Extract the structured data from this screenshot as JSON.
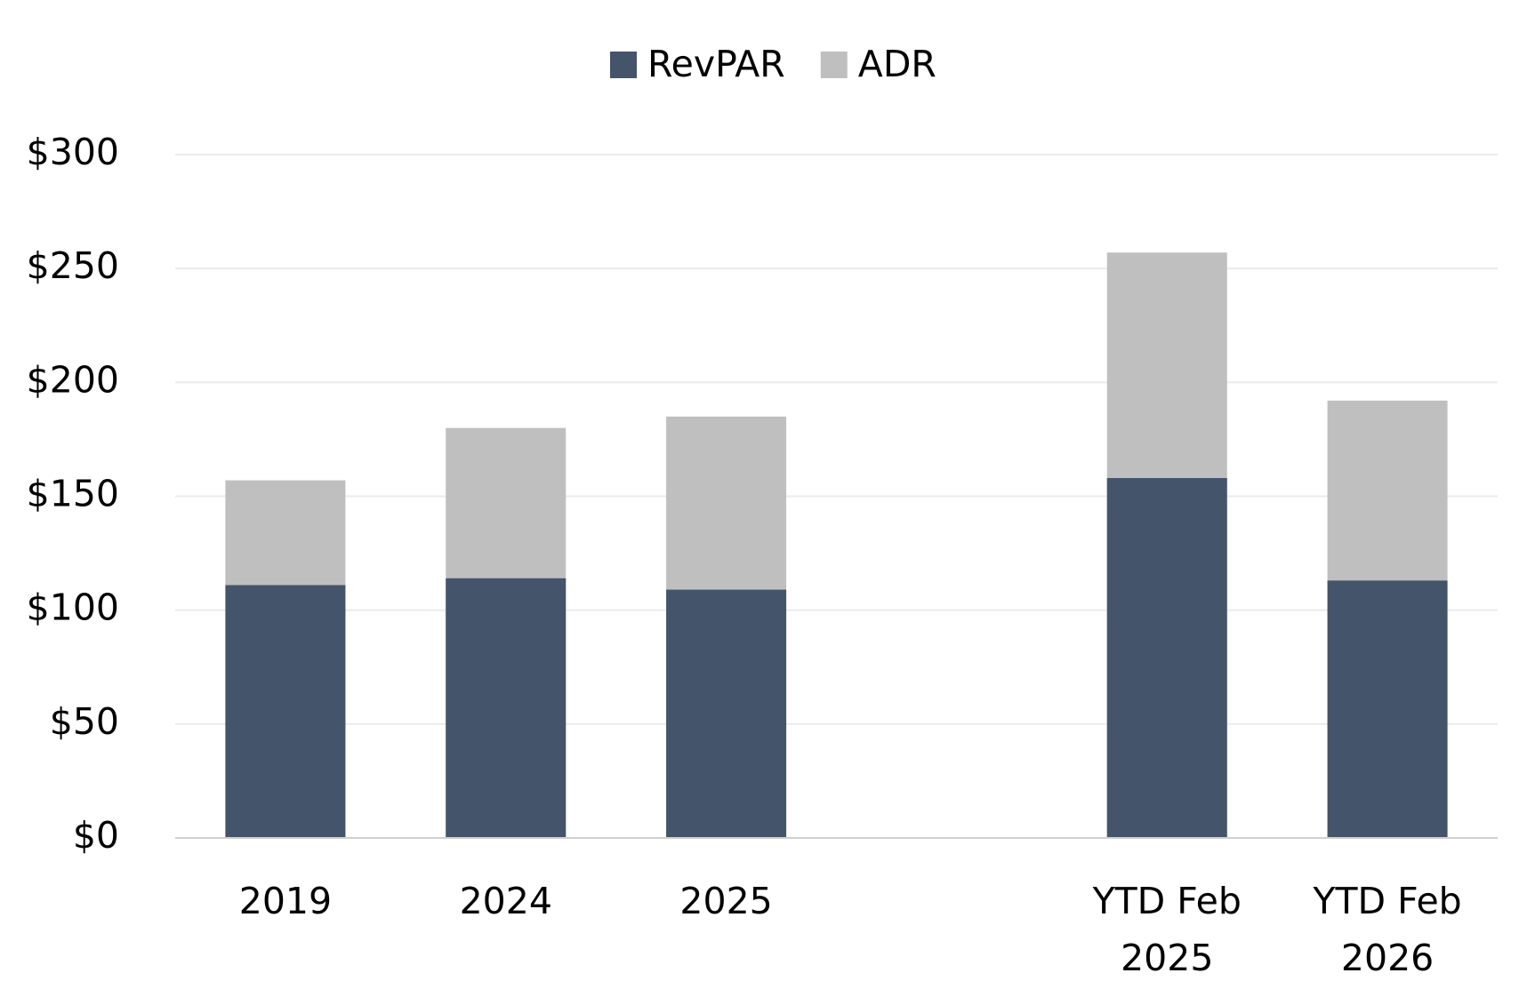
{
  "chart_data": {
    "type": "bar",
    "overlap": true,
    "categories": [
      "2019",
      "2024",
      "2025",
      null,
      "YTD Feb 2025",
      "YTD Feb 2026"
    ],
    "series": [
      {
        "name": "RevPAR",
        "color": "#44546a",
        "values": [
          111,
          114,
          109,
          null,
          158,
          113
        ]
      },
      {
        "name": "ADR",
        "color": "#bfbfbf",
        "values": [
          157,
          180,
          185,
          null,
          257,
          192
        ]
      }
    ],
    "ylim": [
      0,
      300
    ],
    "yticks": [
      {
        "value": 0,
        "label": "$0"
      },
      {
        "value": 50,
        "label": "$50"
      },
      {
        "value": 100,
        "label": "$100"
      },
      {
        "value": 150,
        "label": "$150"
      },
      {
        "value": 200,
        "label": "$200"
      },
      {
        "value": 250,
        "label": "$250"
      },
      {
        "value": 300,
        "label": "$300"
      }
    ],
    "grid": true,
    "legend": "top"
  }
}
